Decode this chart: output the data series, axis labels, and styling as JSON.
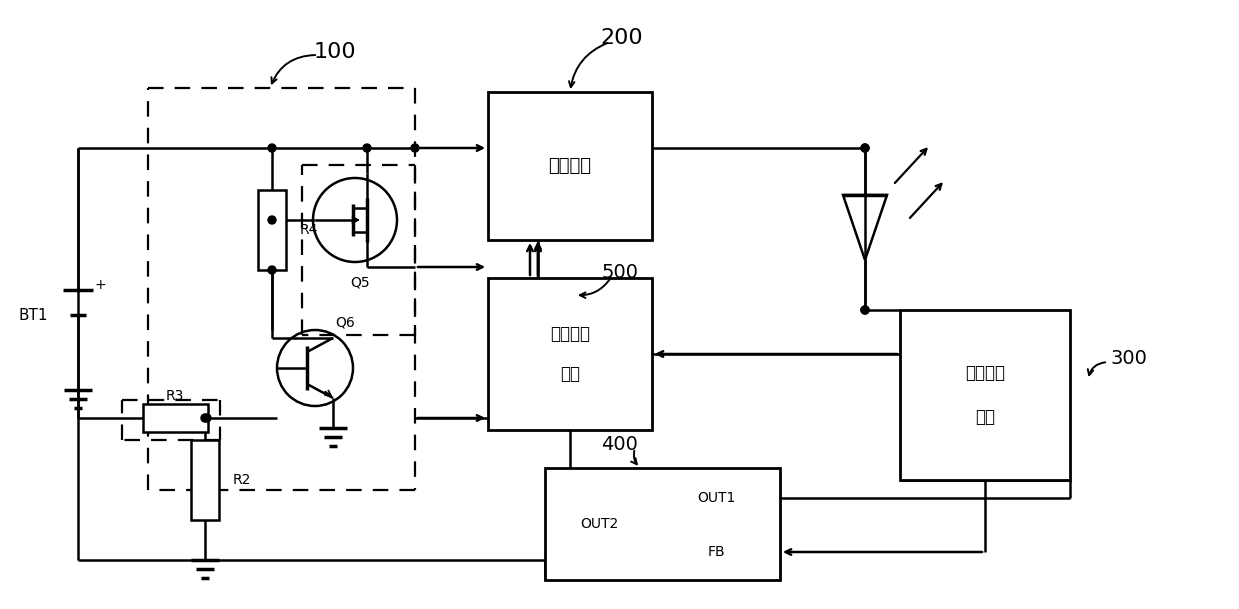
{
  "bg": "#ffffff",
  "lc": "#000000",
  "fw": 12.39,
  "fh": 6.09,
  "dpi": 100,
  "boost_label": "升压单元",
  "ovp_l1": "过压保护",
  "ovp_l2": "单元",
  "vdet_l1": "电压检测",
  "vdet_l2": "单元",
  "lbl_100": "100",
  "lbl_200": "200",
  "lbl_300": "300",
  "lbl_400": "400",
  "lbl_500": "500",
  "lbl_BT1": "BT1",
  "lbl_R4": "R4",
  "lbl_Q5": "Q5",
  "lbl_Q6": "Q6",
  "lbl_R3": "R3",
  "lbl_R2": "R2",
  "lbl_OUT1": "OUT1",
  "lbl_OUT2": "OUT2",
  "lbl_FB": "FB"
}
